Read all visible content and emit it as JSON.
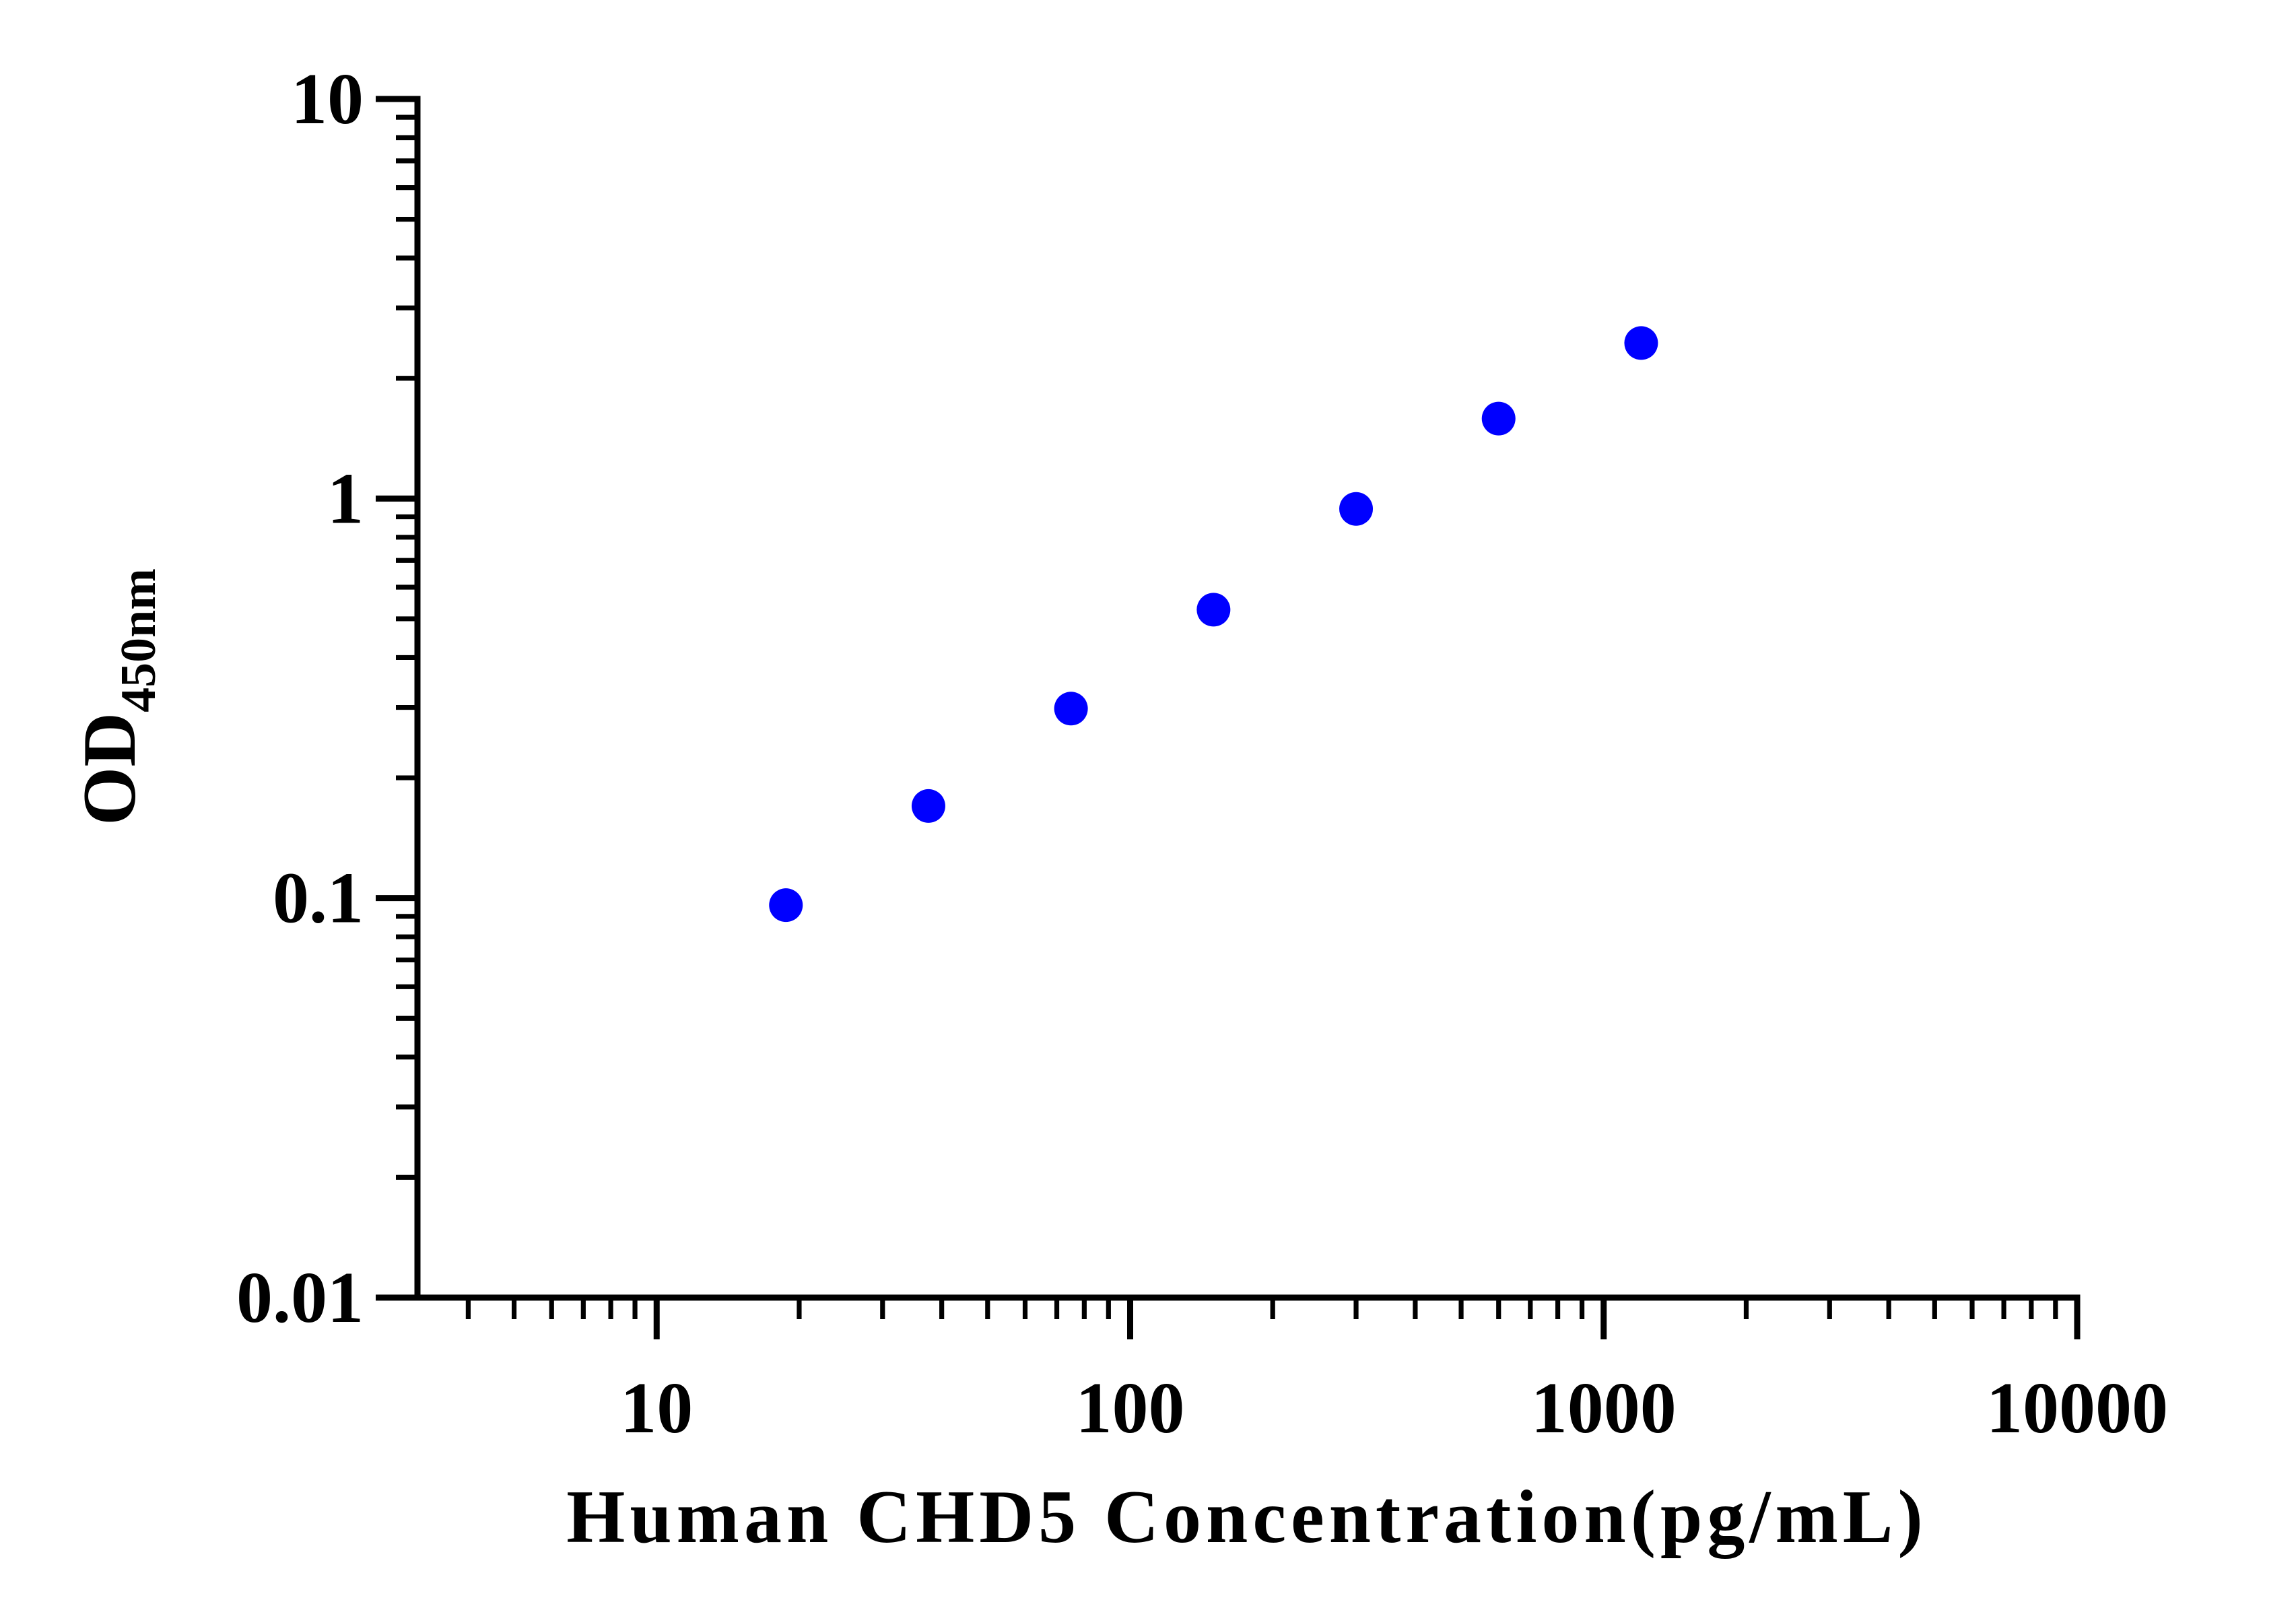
{
  "chart_data": {
    "type": "line",
    "x_label": "Human CHD5 Concentration(pg/mL)",
    "y_label": "OD",
    "y_label_sub": "450nm",
    "x": [
      18.75,
      37.5,
      75,
      150,
      300,
      600,
      1200
    ],
    "series": [
      {
        "color": "#0000ff",
        "values": [
          0.096,
          0.17,
          0.298,
          0.527,
          0.942,
          1.585,
          2.45
        ]
      }
    ],
    "xscale": "log",
    "yscale": "log",
    "xlim": [
      3.125,
      10000
    ],
    "xticks": [
      10,
      100,
      1000,
      10000
    ],
    "ylim": [
      0.01,
      10
    ],
    "yticks": [
      0.01,
      0.1,
      1,
      10
    ],
    "grid": false
  }
}
